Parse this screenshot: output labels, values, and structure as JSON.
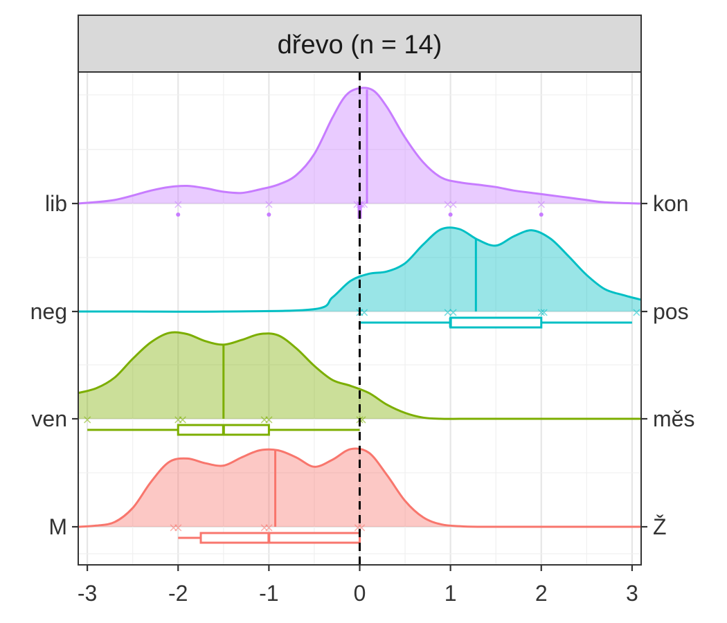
{
  "chart_data": {
    "type": "ridgeline",
    "title": "dřevo (n = 14)",
    "xlabel": "",
    "ylabel": "",
    "xlim": [
      -3.1,
      3.1
    ],
    "x_ticks": [
      "-3",
      "-2",
      "-1",
      "0",
      "1",
      "2",
      "3"
    ],
    "reference_line_x": 0,
    "grid": true,
    "series": [
      {
        "left_label": "M",
        "right_label": "Ž",
        "color": "#F8766D",
        "density_x": [
          -3.1,
          -2.9,
          -2.7,
          -2.5,
          -2.3,
          -2.1,
          -1.9,
          -1.7,
          -1.5,
          -1.3,
          -1.1,
          -0.9,
          -0.7,
          -0.5,
          -0.3,
          -0.1,
          0.1,
          0.3,
          0.5,
          0.7,
          0.9,
          1.1,
          1.3,
          1.5,
          2.0,
          2.5,
          3.1
        ],
        "density_y": [
          0.0,
          0.01,
          0.04,
          0.16,
          0.38,
          0.55,
          0.58,
          0.54,
          0.52,
          0.59,
          0.65,
          0.65,
          0.59,
          0.51,
          0.57,
          0.66,
          0.63,
          0.44,
          0.22,
          0.08,
          0.02,
          0.005,
          0.0,
          0.0,
          0.0,
          0.0,
          0.0
        ],
        "median_line": -0.93,
        "points": [
          -2.05,
          -2.0,
          -1.05,
          -1.0,
          -0.02,
          0.02
        ],
        "box": {
          "whisker_low": -2.0,
          "q1": -1.75,
          "median": -1.0,
          "q3": 0.0,
          "whisker_high": 0.0
        }
      },
      {
        "left_label": "ven",
        "right_label": "měs",
        "color": "#7CAE00",
        "density_x": [
          -3.1,
          -2.9,
          -2.7,
          -2.5,
          -2.3,
          -2.1,
          -1.9,
          -1.7,
          -1.5,
          -1.3,
          -1.1,
          -0.9,
          -0.7,
          -0.5,
          -0.3,
          -0.1,
          0.1,
          0.3,
          0.5,
          0.7,
          0.9,
          1.1,
          1.3,
          1.5,
          2.0,
          2.5,
          3.1
        ],
        "density_y": [
          0.22,
          0.26,
          0.35,
          0.51,
          0.65,
          0.73,
          0.72,
          0.66,
          0.63,
          0.67,
          0.72,
          0.71,
          0.6,
          0.45,
          0.33,
          0.28,
          0.22,
          0.12,
          0.05,
          0.01,
          0.0,
          0.0,
          0.0,
          0.0,
          0.0,
          0.0,
          0.0
        ],
        "median_line": -1.5,
        "points": [
          -3.0,
          -2.0,
          -1.95,
          -1.05,
          -1.0,
          0.0,
          0.03
        ],
        "box": {
          "whisker_low": -3.0,
          "q1": -2.0,
          "median": -1.5,
          "q3": -1.0,
          "whisker_high": 0.0
        }
      },
      {
        "left_label": "neg",
        "right_label": "pos",
        "color": "#00BFC4",
        "density_x": [
          -3.1,
          -2.5,
          -1.5,
          -0.5,
          -0.3,
          -0.1,
          0.1,
          0.3,
          0.5,
          0.7,
          0.9,
          1.1,
          1.3,
          1.5,
          1.7,
          1.9,
          2.1,
          2.3,
          2.5,
          2.7,
          2.9,
          3.1
        ],
        "density_y": [
          0.0,
          0.0,
          0.0,
          0.02,
          0.12,
          0.26,
          0.32,
          0.34,
          0.41,
          0.57,
          0.7,
          0.7,
          0.61,
          0.56,
          0.64,
          0.69,
          0.62,
          0.47,
          0.31,
          0.19,
          0.14,
          0.1
        ],
        "median_line": 1.28,
        "points": [
          0.0,
          0.05,
          0.97,
          1.03,
          2.0,
          2.03,
          3.05
        ],
        "box": {
          "whisker_low": 0.0,
          "q1": 1.0,
          "median": 1.0,
          "q3": 2.0,
          "whisker_high": 3.0
        }
      },
      {
        "left_label": "lib",
        "right_label": "kon",
        "color": "#C77CFF",
        "density_x": [
          -3.1,
          -2.7,
          -2.3,
          -2.1,
          -1.9,
          -1.7,
          -1.5,
          -1.3,
          -1.1,
          -0.9,
          -0.7,
          -0.5,
          -0.3,
          -0.15,
          0.0,
          0.15,
          0.3,
          0.5,
          0.7,
          0.9,
          1.1,
          1.3,
          1.5,
          1.7,
          1.9,
          2.1,
          2.3,
          2.5,
          2.7,
          3.1
        ],
        "density_y": [
          0.0,
          0.03,
          0.11,
          0.14,
          0.15,
          0.13,
          0.1,
          0.09,
          0.12,
          0.16,
          0.24,
          0.42,
          0.73,
          0.92,
          0.98,
          0.96,
          0.82,
          0.56,
          0.35,
          0.22,
          0.18,
          0.16,
          0.14,
          0.11,
          0.09,
          0.07,
          0.05,
          0.03,
          0.01,
          0.0
        ],
        "median_line": 0.08,
        "points": [
          -2.0,
          -1.0,
          -0.03,
          0.0,
          0.02,
          0.05,
          0.97,
          1.03,
          2.0
        ],
        "outliers": [
          -2.0,
          -1.0,
          1.0,
          2.0
        ],
        "box": {
          "whisker_low": 0.0,
          "q1": 0.0,
          "median": 0.0,
          "q3": 0.0,
          "whisker_high": 0.0
        }
      }
    ]
  }
}
